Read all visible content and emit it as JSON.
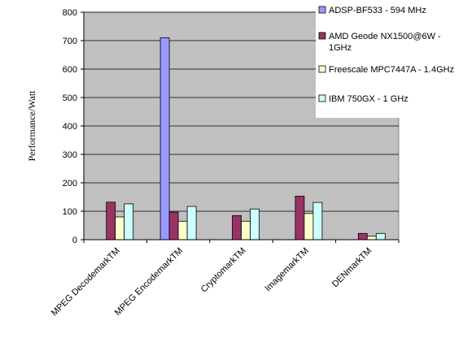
{
  "chart_data": {
    "type": "bar",
    "title": "",
    "xlabel": "",
    "ylabel": "Performance/Watt",
    "ylim": [
      0,
      800
    ],
    "yticks": [
      0,
      100,
      200,
      300,
      400,
      500,
      600,
      700,
      800
    ],
    "grid": true,
    "legend_position": "top-right",
    "categories": [
      "MPEG DecodemarkTM",
      "MPEG EncodemarkTM",
      "CryptomarkTM",
      "ImagemarkTM",
      "DENmarkTM"
    ],
    "series": [
      {
        "name": "ADSP-BF533 - 594 MHz",
        "color": "#9999ff",
        "values": [
          0,
          710,
          0,
          0,
          0
        ]
      },
      {
        "name": "AMD Geode NX1500@6W - 1GHz",
        "color": "#993366",
        "values": [
          132,
          97,
          85,
          153,
          22
        ]
      },
      {
        "name": "Freescale MPC7447A - 1.4GHz",
        "color": "#ffffcc",
        "values": [
          80,
          65,
          65,
          92,
          12
        ]
      },
      {
        "name": "IBM 750GX - 1 GHz",
        "color": "#ccffff",
        "values": [
          126,
          117,
          108,
          131,
          22
        ]
      }
    ],
    "plot_background": "#c0c0c0"
  }
}
